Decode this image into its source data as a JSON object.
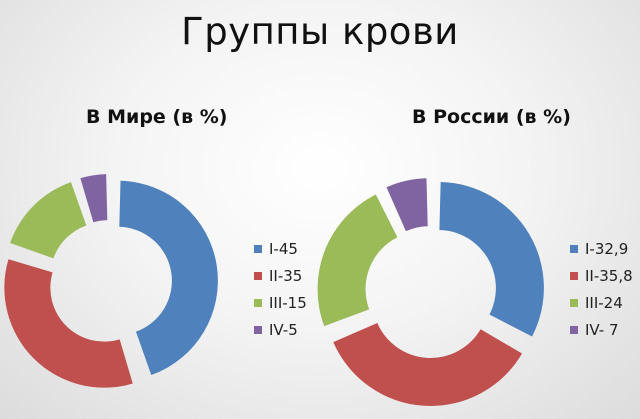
{
  "title": "Группы крови",
  "chart_data": [
    {
      "type": "pie",
      "subtype": "exploded-donut",
      "title": "В Мире (в %)",
      "categories": [
        "I-45",
        "II-35",
        "III-15",
        "IV-5"
      ],
      "values": [
        45,
        35,
        15,
        5
      ],
      "colors": [
        "#4F81BD",
        "#C0504D",
        "#9BBB59",
        "#8064A2"
      ],
      "legend_position": "right"
    },
    {
      "type": "pie",
      "subtype": "exploded-donut",
      "title": "В России (в %)",
      "categories": [
        "I-32,9",
        "II-35,8",
        "III-24",
        "IV- 7"
      ],
      "values": [
        32.9,
        35.8,
        24,
        7
      ],
      "colors": [
        "#4F81BD",
        "#C0504D",
        "#9BBB59",
        "#8064A2"
      ],
      "legend_position": "right"
    }
  ]
}
